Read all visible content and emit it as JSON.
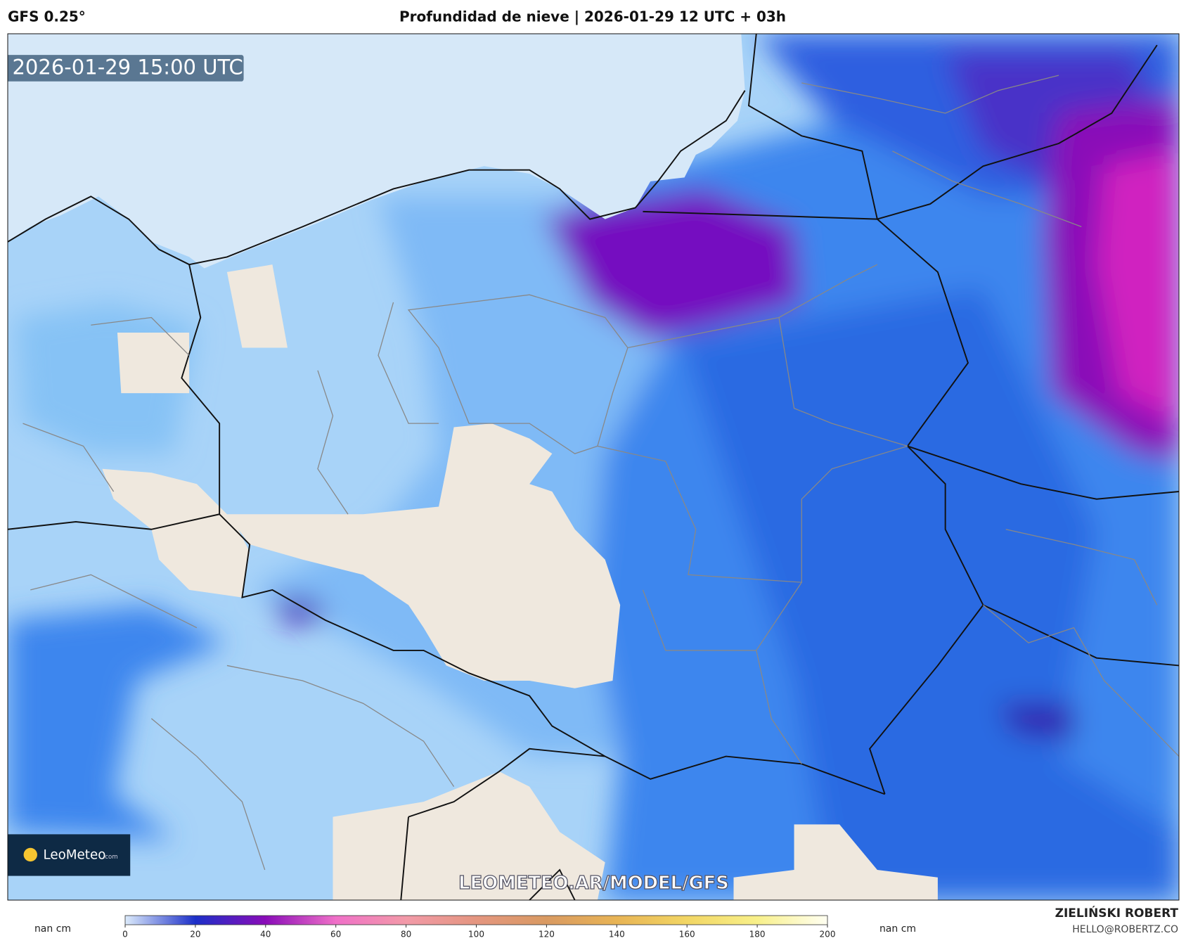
{
  "header": {
    "model": "GFS 0.25°",
    "title": "Profundidad de nieve | 2026-01-29 12 UTC + 03h"
  },
  "map": {
    "timestamp": "2026-01-29 15:00 UTC",
    "watermark": "LEOMETEO.AR/MODEL/GFS",
    "logo": {
      "brand": "LeoMeteo",
      "suffix": ".com"
    }
  },
  "legend": {
    "unit_left": "nan cm",
    "unit_right": "nan cm",
    "ticks": [
      0,
      20,
      40,
      60,
      80,
      100,
      120,
      140,
      160,
      180,
      200
    ],
    "colors": [
      "#dcebfb",
      "#1c2fc8",
      "#8a0cb8",
      "#f070c8",
      "#f29aa8",
      "#e49680",
      "#d99a62",
      "#e8b455",
      "#f2d664",
      "#f8f08a",
      "#fffff2"
    ]
  },
  "footer": {
    "author": "ZIELIŃSKI ROBERT",
    "email": "HELLO@ROBERTZ.CO"
  }
}
